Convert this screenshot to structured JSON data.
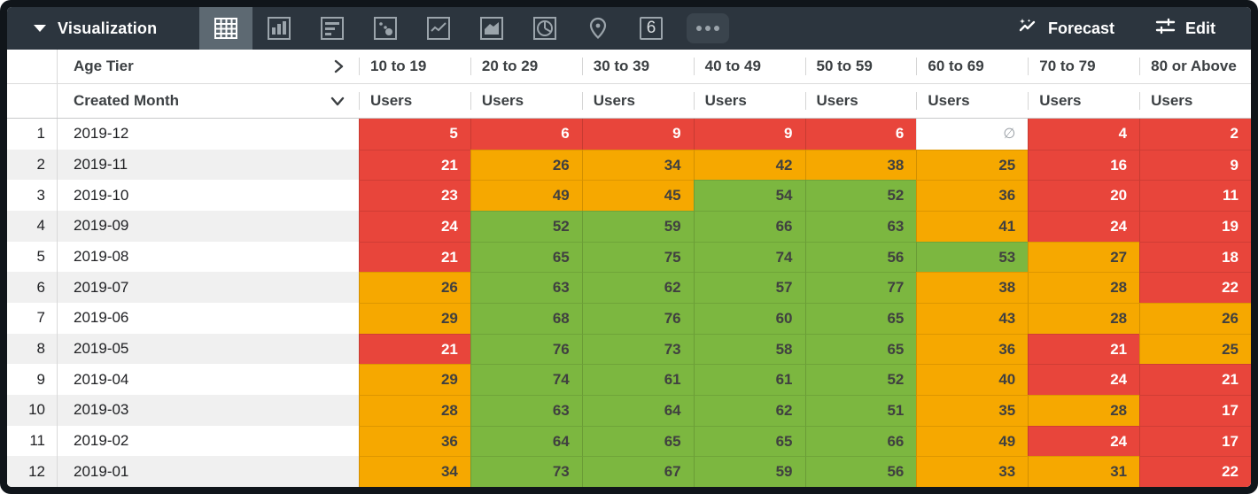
{
  "toolbar": {
    "visualization_label": "Visualization",
    "forecast_label": "Forecast",
    "edit_label": "Edit",
    "single_value_tab_label": "6",
    "selected_tab": "table",
    "tabs": [
      "table",
      "bar-chart",
      "row-chart",
      "scatter",
      "line-chart",
      "area-chart",
      "pie-chart",
      "map",
      "single-value",
      "more"
    ],
    "colors": {
      "bar_bg": "#2c353e",
      "selected_tab_bg": "#5d6972",
      "icon": "#9ba4ab"
    }
  },
  "table": {
    "pivot_field_label": "Age Tier",
    "row_field_label": "Created Month",
    "measure_label": "Users",
    "null_symbol": "∅",
    "columns": [
      "10 to 19",
      "20 to 29",
      "30 to 39",
      "40 to 49",
      "50 to 59",
      "60 to 69",
      "70 to 79",
      "80 or Above"
    ],
    "rows": [
      {
        "index": 1,
        "month": "2019-12",
        "values": [
          5,
          6,
          9,
          9,
          6,
          null,
          4,
          2
        ]
      },
      {
        "index": 2,
        "month": "2019-11",
        "values": [
          21,
          26,
          34,
          42,
          38,
          25,
          16,
          9
        ]
      },
      {
        "index": 3,
        "month": "2019-10",
        "values": [
          23,
          49,
          45,
          54,
          52,
          36,
          20,
          11
        ]
      },
      {
        "index": 4,
        "month": "2019-09",
        "values": [
          24,
          52,
          59,
          66,
          63,
          41,
          24,
          19
        ]
      },
      {
        "index": 5,
        "month": "2019-08",
        "values": [
          21,
          65,
          75,
          74,
          56,
          53,
          27,
          18
        ]
      },
      {
        "index": 6,
        "month": "2019-07",
        "values": [
          26,
          63,
          62,
          57,
          77,
          38,
          28,
          22
        ]
      },
      {
        "index": 7,
        "month": "2019-06",
        "values": [
          29,
          68,
          76,
          60,
          65,
          43,
          28,
          26
        ]
      },
      {
        "index": 8,
        "month": "2019-05",
        "values": [
          21,
          76,
          73,
          58,
          65,
          36,
          21,
          25
        ]
      },
      {
        "index": 9,
        "month": "2019-04",
        "values": [
          29,
          74,
          61,
          61,
          52,
          40,
          24,
          21
        ]
      },
      {
        "index": 10,
        "month": "2019-03",
        "values": [
          28,
          63,
          64,
          62,
          51,
          35,
          28,
          17
        ]
      },
      {
        "index": 11,
        "month": "2019-02",
        "values": [
          36,
          64,
          65,
          65,
          66,
          49,
          24,
          17
        ]
      },
      {
        "index": 12,
        "month": "2019-01",
        "values": [
          34,
          73,
          67,
          59,
          56,
          33,
          31,
          22
        ]
      }
    ],
    "heatmap": {
      "red_below": 25,
      "green_at_or_above": 50,
      "red": "#e8453b",
      "orange": "#f6a800",
      "green": "#7cb740",
      "text_on_red": "#ffffff",
      "text_on_mid": "#404040",
      "null_text": "#9aa0a6",
      "stripe_color": "#f0f0f0"
    }
  }
}
